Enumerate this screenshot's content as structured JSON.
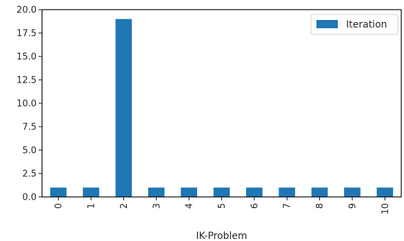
{
  "chart_data": {
    "type": "bar",
    "categories": [
      "0",
      "1",
      "2",
      "3",
      "4",
      "5",
      "6",
      "7",
      "8",
      "9",
      "10"
    ],
    "series": [
      {
        "name": "Iteration",
        "values": [
          1,
          1,
          19,
          1,
          1,
          1,
          1,
          1,
          1,
          1,
          1
        ],
        "color": "#1f77b4"
      }
    ],
    "xlabel": "IK-Problem",
    "ylabel": "",
    "ylim": [
      0,
      20
    ],
    "yticks": [
      "0.0",
      "2.5",
      "5.0",
      "7.5",
      "10.0",
      "12.5",
      "15.0",
      "17.5",
      "20.0"
    ],
    "legend_position": "top-right",
    "grid": false
  }
}
